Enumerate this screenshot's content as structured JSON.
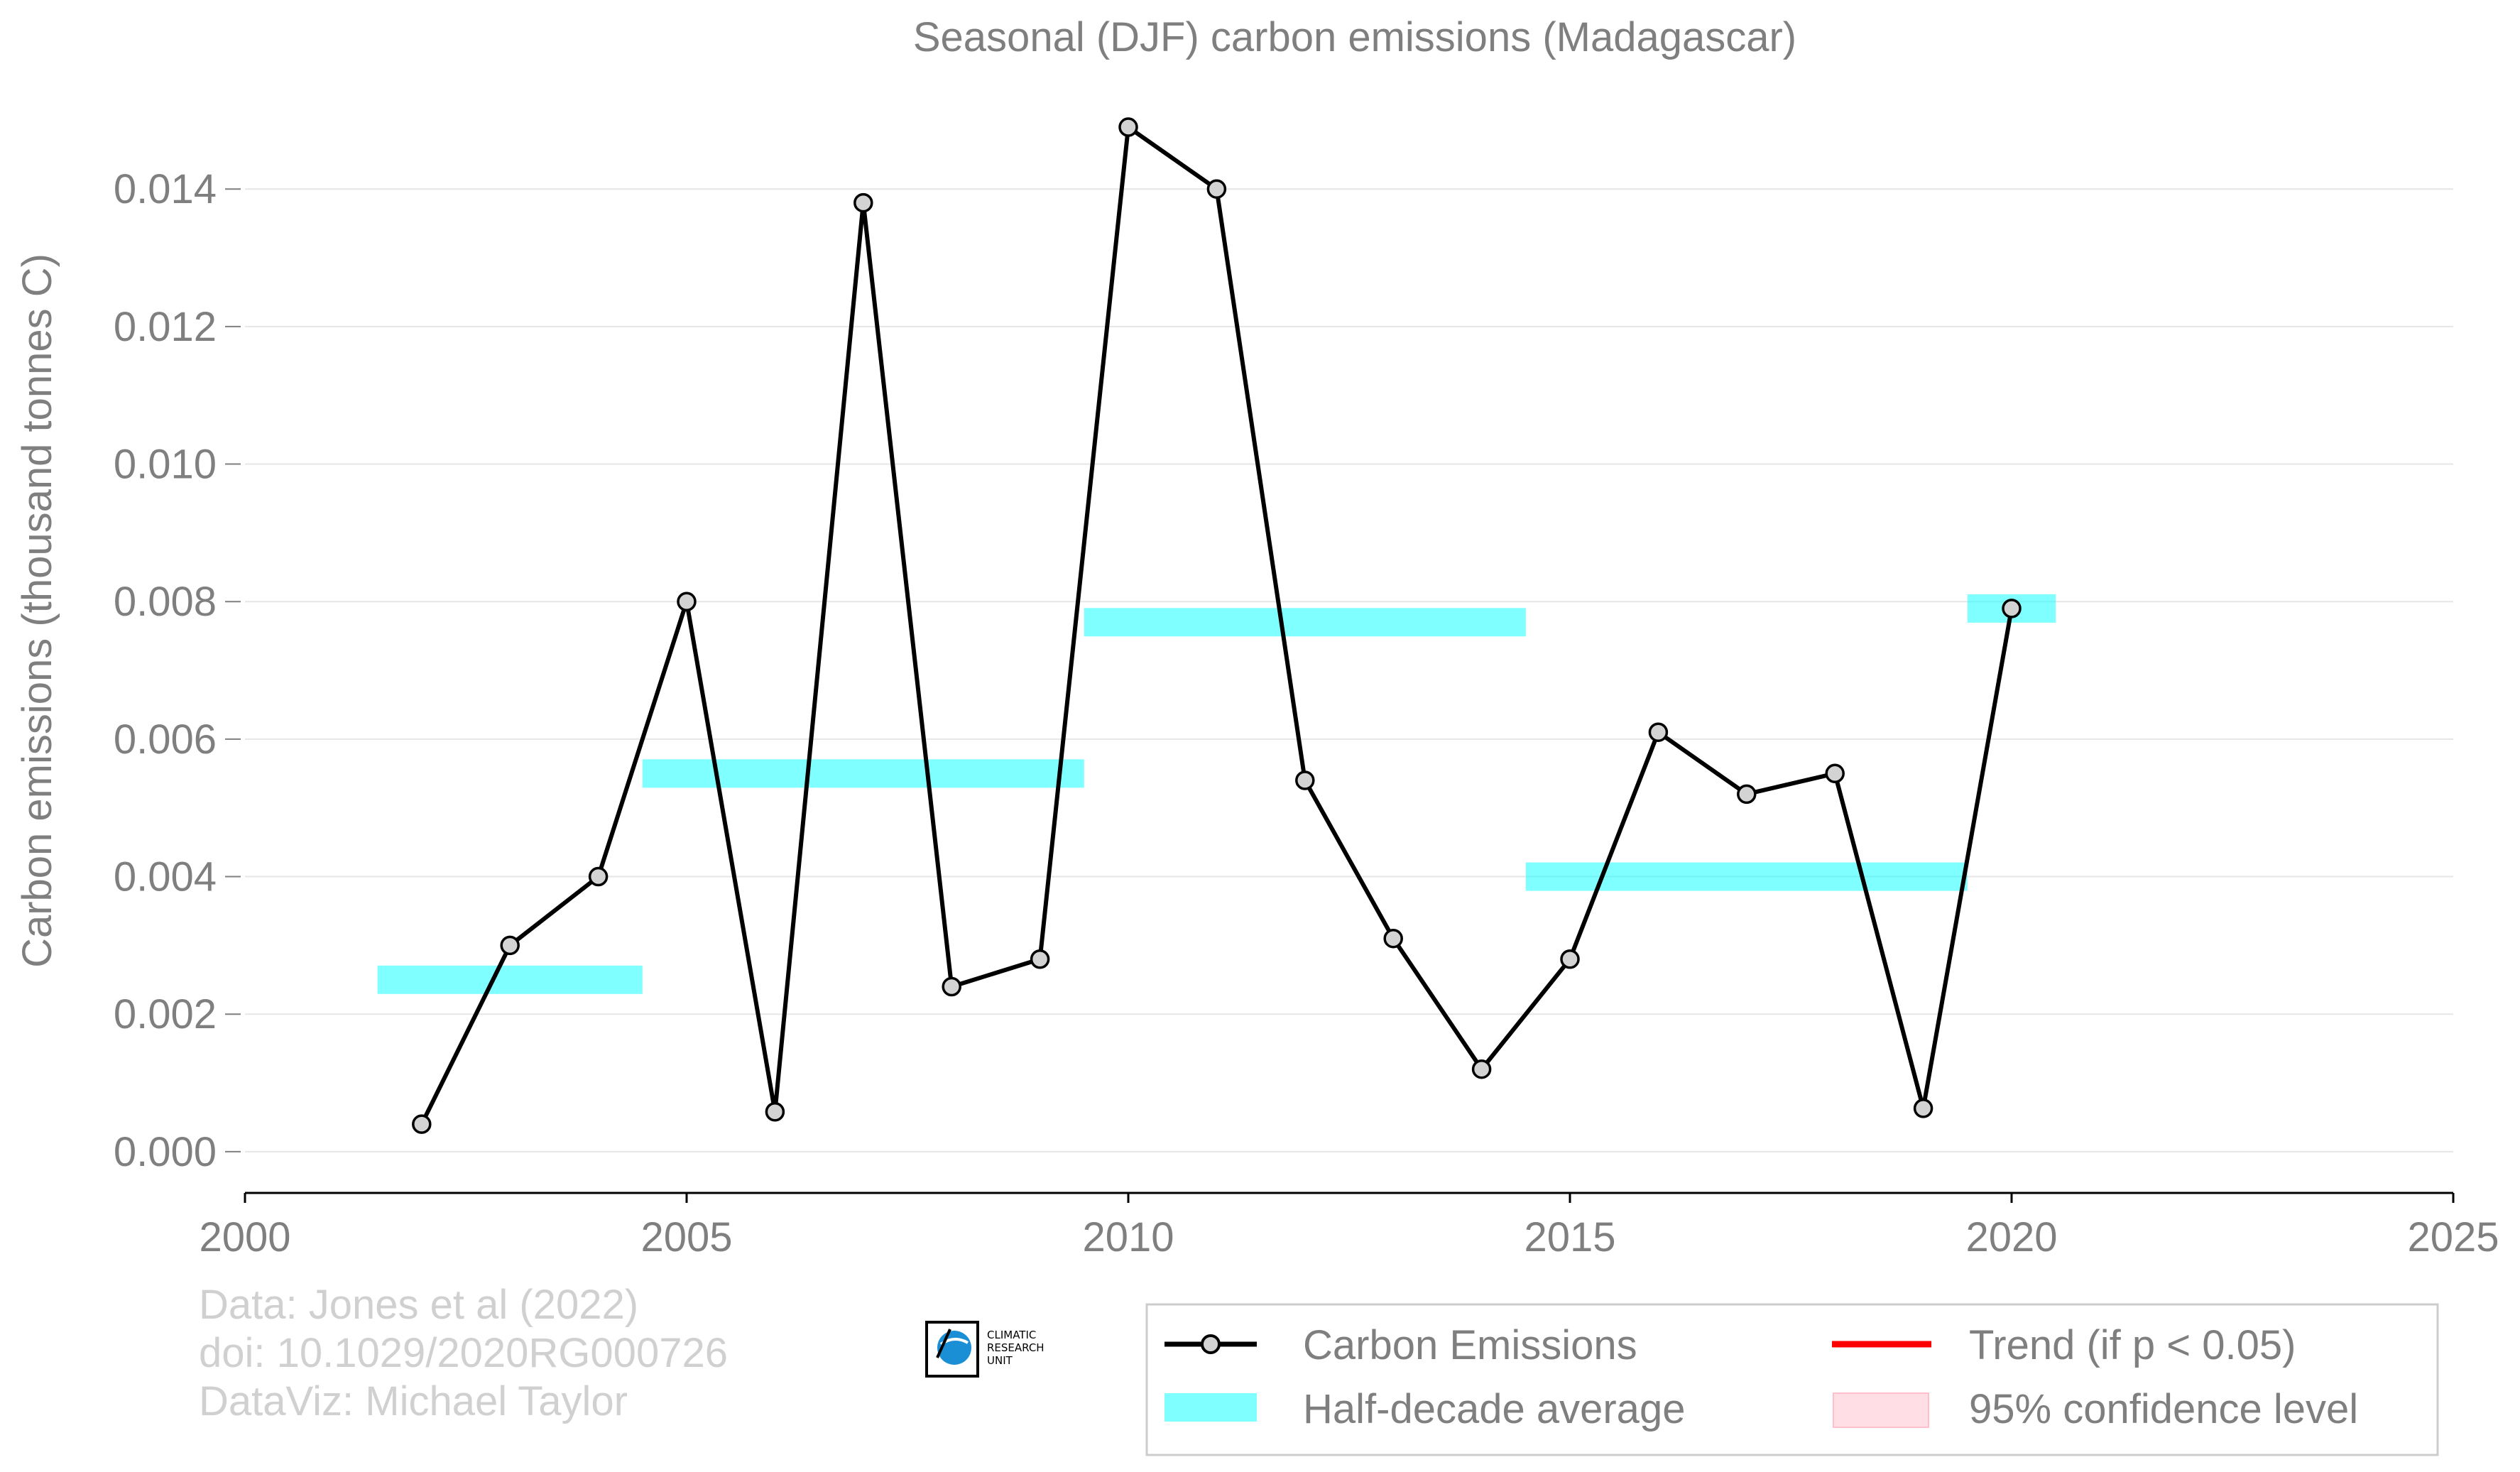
{
  "chart_data": {
    "type": "line",
    "title": "Seasonal (DJF) carbon emissions (Madagascar)",
    "xlabel": "",
    "ylabel": "Carbon emissions (thousand tonnes C)",
    "xlim": [
      2000,
      2025
    ],
    "ylim": [
      -0.0006,
      0.0152
    ],
    "x_ticks": [
      "2000",
      "2005",
      "2010",
      "2015",
      "2020",
      "2025"
    ],
    "y_ticks": [
      "0.000",
      "0.002",
      "0.004",
      "0.006",
      "0.008",
      "0.010",
      "0.012",
      "0.014"
    ],
    "grid": "horizontal",
    "series": [
      {
        "name": "Carbon Emissions",
        "color": "#000000",
        "marker_fill": "#d3d3d3",
        "x": [
          2002,
          2003,
          2004,
          2005,
          2006,
          2007,
          2008,
          2009,
          2010,
          2011,
          2012,
          2013,
          2014,
          2015,
          2016,
          2017,
          2018,
          2019,
          2020
        ],
        "y": [
          0.0004,
          0.003,
          0.004,
          0.008,
          0.00058,
          0.0138,
          0.0024,
          0.0028,
          0.0149,
          0.014,
          0.0054,
          0.0031,
          0.0012,
          0.0028,
          0.0061,
          0.0052,
          0.0055,
          0.00063,
          0.0079
        ]
      }
    ],
    "half_decade_average": {
      "name": "Half-decade average",
      "color": "#00ffff",
      "segments": [
        {
          "x0": 2001.5,
          "x1": 2004.5,
          "y": 0.0025
        },
        {
          "x0": 2004.5,
          "x1": 2009.5,
          "y": 0.0055
        },
        {
          "x0": 2009.5,
          "x1": 2014.5,
          "y": 0.0077
        },
        {
          "x0": 2014.5,
          "x1": 2019.5,
          "y": 0.004
        },
        {
          "x0": 2019.5,
          "x1": 2020.5,
          "y": 0.0079
        }
      ]
    },
    "legend": {
      "placement": "bottom-right",
      "entries": [
        {
          "label": "Carbon Emissions",
          "kind": "line-marker",
          "color": "#000000"
        },
        {
          "label": "Trend (if p < 0.05)",
          "kind": "line",
          "color": "#ff0000"
        },
        {
          "label": "Half-decade average",
          "kind": "band",
          "color": "#00ffff"
        },
        {
          "label": "95% confidence level",
          "kind": "patch",
          "color": "#ffc0cb"
        }
      ]
    }
  },
  "credits": {
    "line1": "Data: Jones et al (2022)",
    "line2": "doi: 10.1029/2020RG000726",
    "line3": "DataViz: Michael Taylor"
  },
  "logo": {
    "line1": "CLIMATIC",
    "line2": "RESEARCH",
    "line3": "UNIT"
  }
}
